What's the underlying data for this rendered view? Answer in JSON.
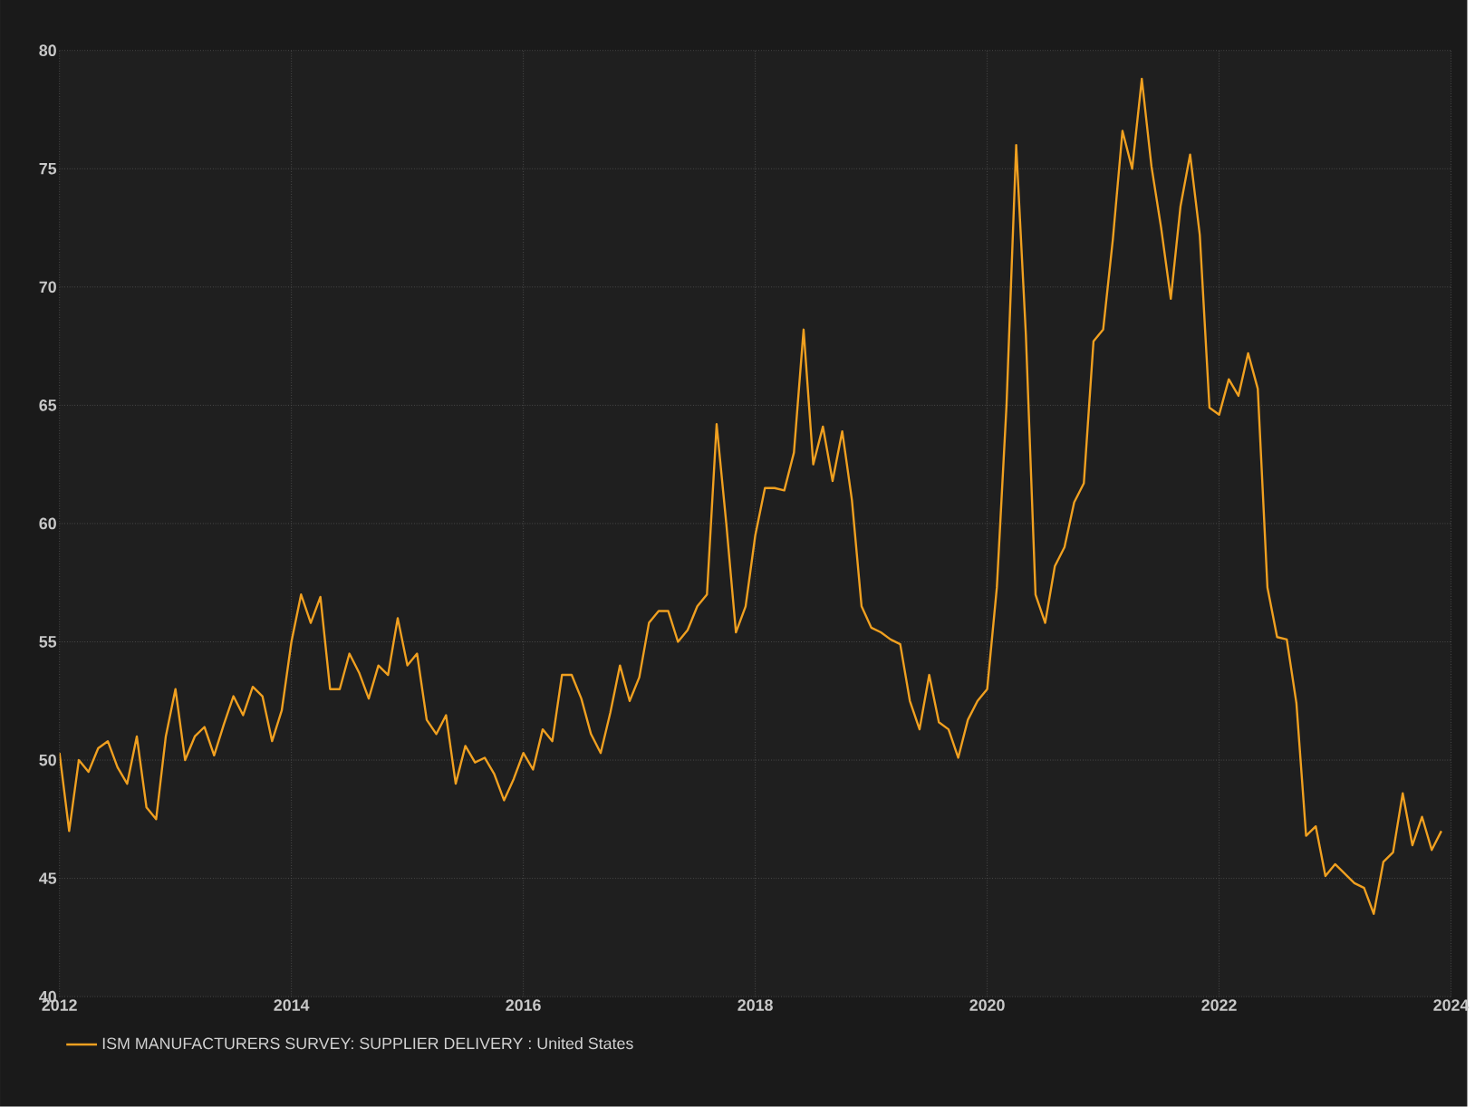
{
  "chart_data": {
    "type": "line",
    "x": [
      "2012-01",
      "2012-02",
      "2012-03",
      "2012-04",
      "2012-05",
      "2012-06",
      "2012-07",
      "2012-08",
      "2012-09",
      "2012-10",
      "2012-11",
      "2012-12",
      "2013-01",
      "2013-02",
      "2013-03",
      "2013-04",
      "2013-05",
      "2013-06",
      "2013-07",
      "2013-08",
      "2013-09",
      "2013-10",
      "2013-11",
      "2013-12",
      "2014-01",
      "2014-02",
      "2014-03",
      "2014-04",
      "2014-05",
      "2014-06",
      "2014-07",
      "2014-08",
      "2014-09",
      "2014-10",
      "2014-11",
      "2014-12",
      "2015-01",
      "2015-02",
      "2015-03",
      "2015-04",
      "2015-05",
      "2015-06",
      "2015-07",
      "2015-08",
      "2015-09",
      "2015-10",
      "2015-11",
      "2015-12",
      "2016-01",
      "2016-02",
      "2016-03",
      "2016-04",
      "2016-05",
      "2016-06",
      "2016-07",
      "2016-08",
      "2016-09",
      "2016-10",
      "2016-11",
      "2016-12",
      "2017-01",
      "2017-02",
      "2017-03",
      "2017-04",
      "2017-05",
      "2017-06",
      "2017-07",
      "2017-08",
      "2017-09",
      "2017-10",
      "2017-11",
      "2017-12",
      "2018-01",
      "2018-02",
      "2018-03",
      "2018-04",
      "2018-05",
      "2018-06",
      "2018-07",
      "2018-08",
      "2018-09",
      "2018-10",
      "2018-11",
      "2018-12",
      "2019-01",
      "2019-02",
      "2019-03",
      "2019-04",
      "2019-05",
      "2019-06",
      "2019-07",
      "2019-08",
      "2019-09",
      "2019-10",
      "2019-11",
      "2019-12",
      "2020-01",
      "2020-02",
      "2020-03",
      "2020-04",
      "2020-05",
      "2020-06",
      "2020-07",
      "2020-08",
      "2020-09",
      "2020-10",
      "2020-11",
      "2020-12",
      "2021-01",
      "2021-02",
      "2021-03",
      "2021-04",
      "2021-05",
      "2021-06",
      "2021-07",
      "2021-08",
      "2021-09",
      "2021-10",
      "2021-11",
      "2021-12",
      "2022-01",
      "2022-02",
      "2022-03",
      "2022-04",
      "2022-05",
      "2022-06",
      "2022-07",
      "2022-08",
      "2022-09",
      "2022-10",
      "2022-11",
      "2022-12",
      "2023-01",
      "2023-02",
      "2023-03",
      "2023-04",
      "2023-05",
      "2023-06",
      "2023-07",
      "2023-08",
      "2023-09",
      "2023-10",
      "2023-11",
      "2023-12"
    ],
    "series": [
      {
        "name": "ISM MANUFACTURERS SURVEY: SUPPLIER DELIVERY : United States",
        "color": "#f0a020",
        "values": [
          50.3,
          47,
          50,
          49.5,
          50.5,
          50.8,
          49.7,
          49,
          51,
          48,
          47.5,
          51,
          53,
          50,
          51,
          51.4,
          50.2,
          51.5,
          52.7,
          51.9,
          53.1,
          52.7,
          50.8,
          52.1,
          55,
          57,
          55.8,
          56.9,
          53,
          53,
          54.5,
          53.7,
          52.6,
          54,
          53.6,
          56,
          54,
          54.5,
          51.7,
          51.1,
          51.9,
          49,
          50.6,
          49.9,
          50.1,
          49.4,
          48.3,
          49.2,
          50.3,
          49.6,
          51.3,
          50.8,
          53.6,
          53.6,
          52.6,
          51.1,
          50.3,
          52,
          54,
          52.5,
          53.5,
          55.8,
          56.3,
          56.3,
          55,
          55.5,
          56.5,
          57,
          64.2,
          60,
          55.4,
          56.5,
          59.5,
          61.5,
          61.5,
          61.4,
          63,
          68.2,
          62.5,
          64.1,
          61.8,
          63.9,
          61,
          56.5,
          55.6,
          55.4,
          55.1,
          54.9,
          52.5,
          51.3,
          53.6,
          51.6,
          51.3,
          50.1,
          51.7,
          52.5,
          53,
          57.3,
          65,
          76,
          68,
          57,
          55.8,
          58.2,
          59,
          60.9,
          61.7,
          67.7,
          68.2,
          72,
          76.6,
          75,
          78.8,
          75.1,
          72.5,
          69.5,
          73.4,
          75.6,
          72.2,
          64.9,
          64.6,
          66.1,
          65.4,
          67.2,
          65.7,
          57.3,
          55.2,
          55.1,
          52.4,
          46.8,
          47.2,
          45.1,
          45.6,
          45.2,
          44.8,
          44.6,
          43.5,
          45.7,
          46.1,
          48.6,
          46.4,
          47.6,
          46.2,
          47
        ]
      }
    ],
    "xlim": [
      "2012",
      "2024"
    ],
    "xticks": [
      "2012",
      "2014",
      "2016",
      "2018",
      "2020",
      "2022",
      "2024"
    ],
    "ylim": [
      40,
      80
    ],
    "yticks": [
      40,
      45,
      50,
      55,
      60,
      65,
      70,
      75,
      80
    ],
    "grid": true,
    "legend": "bottom",
    "marker": "none",
    "line_style": "solid"
  }
}
